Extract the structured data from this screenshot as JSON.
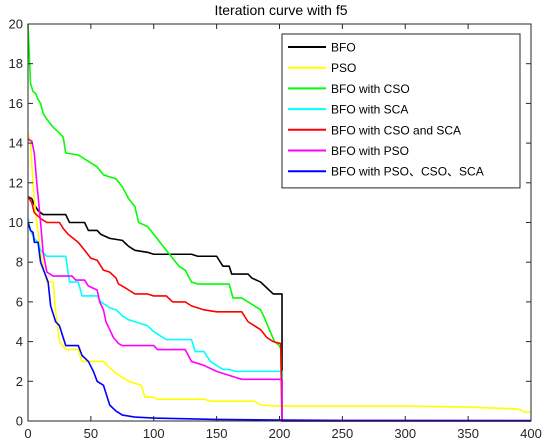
{
  "chart_data": {
    "type": "line",
    "title": "Iteration curve with f5",
    "xlabel": "",
    "ylabel": "",
    "xlim": [
      0,
      400
    ],
    "ylim": [
      0,
      20
    ],
    "xticks": [
      "0",
      "50",
      "100",
      "150",
      "200",
      "250",
      "300",
      "350",
      "400"
    ],
    "yticks": [
      "0",
      "2",
      "4",
      "6",
      "8",
      "10",
      "12",
      "14",
      "16",
      "18",
      "20"
    ],
    "grid": false,
    "legend_position": "top-right",
    "series": [
      {
        "name": "BFO",
        "color": "#000000",
        "points": [
          [
            0,
            11.3
          ],
          [
            3,
            11.2
          ],
          [
            5,
            10.9
          ],
          [
            8,
            10.6
          ],
          [
            12,
            10.4
          ],
          [
            30,
            10.4
          ],
          [
            33,
            10.0
          ],
          [
            45,
            10.0
          ],
          [
            48,
            9.6
          ],
          [
            55,
            9.6
          ],
          [
            58,
            9.4
          ],
          [
            65,
            9.2
          ],
          [
            75,
            9.1
          ],
          [
            80,
            8.8
          ],
          [
            85,
            8.6
          ],
          [
            95,
            8.5
          ],
          [
            100,
            8.4
          ],
          [
            130,
            8.4
          ],
          [
            135,
            8.3
          ],
          [
            150,
            8.3
          ],
          [
            155,
            7.8
          ],
          [
            160,
            7.8
          ],
          [
            162,
            7.4
          ],
          [
            175,
            7.4
          ],
          [
            178,
            7.2
          ],
          [
            185,
            7.0
          ],
          [
            190,
            6.7
          ],
          [
            195,
            6.4
          ],
          [
            202,
            6.4
          ],
          [
            202,
            0.0
          ],
          [
            400,
            0.0
          ]
        ]
      },
      {
        "name": "PSO",
        "color": "#ffff00",
        "points": [
          [
            0,
            14.5
          ],
          [
            2,
            14.0
          ],
          [
            4,
            12.0
          ],
          [
            6,
            10.5
          ],
          [
            8,
            9.5
          ],
          [
            10,
            8.5
          ],
          [
            13,
            7.5
          ],
          [
            15,
            7.0
          ],
          [
            20,
            7.0
          ],
          [
            22,
            5.5
          ],
          [
            25,
            4.0
          ],
          [
            30,
            3.6
          ],
          [
            40,
            3.6
          ],
          [
            43,
            3.0
          ],
          [
            60,
            3.0
          ],
          [
            63,
            2.8
          ],
          [
            70,
            2.4
          ],
          [
            80,
            2.0
          ],
          [
            90,
            1.8
          ],
          [
            93,
            1.2
          ],
          [
            100,
            1.2
          ],
          [
            103,
            1.1
          ],
          [
            140,
            1.1
          ],
          [
            145,
            1.0
          ],
          [
            180,
            1.0
          ],
          [
            185,
            0.8
          ],
          [
            200,
            0.75
          ],
          [
            300,
            0.75
          ],
          [
            350,
            0.7
          ],
          [
            390,
            0.6
          ],
          [
            395,
            0.45
          ],
          [
            400,
            0.45
          ]
        ]
      },
      {
        "name": "BFO with CSO",
        "color": "#00ff00",
        "points": [
          [
            0,
            20.0
          ],
          [
            2,
            17.0
          ],
          [
            4,
            16.6
          ],
          [
            6,
            16.5
          ],
          [
            8,
            16.2
          ],
          [
            10,
            16.0
          ],
          [
            12,
            15.5
          ],
          [
            15,
            15.2
          ],
          [
            20,
            14.8
          ],
          [
            25,
            14.5
          ],
          [
            28,
            14.3
          ],
          [
            30,
            13.5
          ],
          [
            40,
            13.4
          ],
          [
            45,
            13.2
          ],
          [
            50,
            13.0
          ],
          [
            55,
            12.8
          ],
          [
            60,
            12.4
          ],
          [
            70,
            12.2
          ],
          [
            75,
            11.8
          ],
          [
            80,
            11.2
          ],
          [
            85,
            10.8
          ],
          [
            88,
            10.0
          ],
          [
            95,
            9.8
          ],
          [
            100,
            9.4
          ],
          [
            105,
            9.0
          ],
          [
            110,
            8.6
          ],
          [
            115,
            8.2
          ],
          [
            120,
            7.8
          ],
          [
            125,
            7.6
          ],
          [
            130,
            7.0
          ],
          [
            135,
            6.9
          ],
          [
            160,
            6.9
          ],
          [
            163,
            6.2
          ],
          [
            170,
            6.2
          ],
          [
            175,
            6.0
          ],
          [
            180,
            5.8
          ],
          [
            185,
            5.6
          ],
          [
            188,
            5.2
          ],
          [
            192,
            4.6
          ],
          [
            196,
            4.0
          ],
          [
            200,
            3.8
          ],
          [
            201,
            3.6
          ],
          [
            202,
            0.0
          ],
          [
            400,
            0.0
          ]
        ]
      },
      {
        "name": "BFO with SCA",
        "color": "#00ffff",
        "points": [
          [
            0,
            10.2
          ],
          [
            2,
            9.6
          ],
          [
            5,
            9.2
          ],
          [
            8,
            9.0
          ],
          [
            10,
            8.6
          ],
          [
            15,
            8.3
          ],
          [
            30,
            8.3
          ],
          [
            33,
            7.0
          ],
          [
            40,
            7.0
          ],
          [
            43,
            6.3
          ],
          [
            55,
            6.3
          ],
          [
            58,
            6.0
          ],
          [
            65,
            5.7
          ],
          [
            70,
            5.6
          ],
          [
            75,
            5.3
          ],
          [
            80,
            5.1
          ],
          [
            85,
            5.0
          ],
          [
            95,
            4.8
          ],
          [
            100,
            4.5
          ],
          [
            105,
            4.3
          ],
          [
            110,
            4.1
          ],
          [
            130,
            4.1
          ],
          [
            133,
            3.5
          ],
          [
            140,
            3.5
          ],
          [
            145,
            3.0
          ],
          [
            150,
            2.8
          ],
          [
            155,
            2.6
          ],
          [
            160,
            2.6
          ],
          [
            165,
            2.5
          ],
          [
            200,
            2.5
          ],
          [
            202,
            2.5
          ],
          [
            202,
            0.0
          ],
          [
            400,
            0.0
          ]
        ]
      },
      {
        "name": "BFO with CSO and SCA",
        "color": "#ff0000",
        "points": [
          [
            0,
            11.3
          ],
          [
            3,
            11.0
          ],
          [
            5,
            10.5
          ],
          [
            10,
            10.2
          ],
          [
            15,
            10.0
          ],
          [
            25,
            10.0
          ],
          [
            28,
            9.7
          ],
          [
            32,
            9.4
          ],
          [
            40,
            9.0
          ],
          [
            45,
            8.6
          ],
          [
            50,
            8.2
          ],
          [
            55,
            8.1
          ],
          [
            60,
            7.6
          ],
          [
            65,
            7.5
          ],
          [
            70,
            7.2
          ],
          [
            72,
            6.9
          ],
          [
            75,
            6.8
          ],
          [
            80,
            6.6
          ],
          [
            85,
            6.4
          ],
          [
            95,
            6.4
          ],
          [
            100,
            6.3
          ],
          [
            110,
            6.3
          ],
          [
            115,
            6.0
          ],
          [
            125,
            6.0
          ],
          [
            130,
            5.8
          ],
          [
            140,
            5.6
          ],
          [
            150,
            5.5
          ],
          [
            170,
            5.5
          ],
          [
            175,
            5.0
          ],
          [
            180,
            4.8
          ],
          [
            185,
            4.6
          ],
          [
            190,
            4.2
          ],
          [
            195,
            4.0
          ],
          [
            201,
            3.9
          ],
          [
            202,
            0.0
          ],
          [
            400,
            0.0
          ]
        ]
      },
      {
        "name": "BFO with PSO",
        "color": "#ff00ff",
        "points": [
          [
            0,
            14.2
          ],
          [
            3,
            14.1
          ],
          [
            5,
            13.5
          ],
          [
            7,
            12.0
          ],
          [
            10,
            10.0
          ],
          [
            12,
            8.5
          ],
          [
            15,
            7.5
          ],
          [
            20,
            7.3
          ],
          [
            35,
            7.3
          ],
          [
            38,
            7.1
          ],
          [
            45,
            7.1
          ],
          [
            48,
            6.8
          ],
          [
            55,
            6.6
          ],
          [
            57,
            6.0
          ],
          [
            60,
            5.6
          ],
          [
            62,
            5.0
          ],
          [
            65,
            4.6
          ],
          [
            68,
            4.2
          ],
          [
            72,
            3.9
          ],
          [
            75,
            3.8
          ],
          [
            100,
            3.8
          ],
          [
            103,
            3.6
          ],
          [
            125,
            3.6
          ],
          [
            130,
            3.0
          ],
          [
            140,
            2.8
          ],
          [
            150,
            2.5
          ],
          [
            165,
            2.2
          ],
          [
            170,
            2.1
          ],
          [
            202,
            2.1
          ],
          [
            202,
            0.0
          ],
          [
            400,
            0.0
          ]
        ]
      },
      {
        "name": "BFO with PSO、CSO、SCA",
        "color": "#0000ff",
        "points": [
          [
            0,
            10.0
          ],
          [
            2,
            9.6
          ],
          [
            4,
            9.5
          ],
          [
            5,
            9.0
          ],
          [
            8,
            9.0
          ],
          [
            10,
            8.0
          ],
          [
            13,
            7.5
          ],
          [
            16,
            7.0
          ],
          [
            18,
            5.8
          ],
          [
            20,
            5.4
          ],
          [
            22,
            5.0
          ],
          [
            25,
            4.8
          ],
          [
            28,
            4.2
          ],
          [
            30,
            3.8
          ],
          [
            40,
            3.8
          ],
          [
            43,
            3.3
          ],
          [
            48,
            3.0
          ],
          [
            52,
            2.5
          ],
          [
            55,
            2.0
          ],
          [
            60,
            1.8
          ],
          [
            63,
            1.2
          ],
          [
            65,
            0.8
          ],
          [
            70,
            0.5
          ],
          [
            75,
            0.3
          ],
          [
            85,
            0.2
          ],
          [
            100,
            0.15
          ],
          [
            150,
            0.08
          ],
          [
            202,
            0.05
          ],
          [
            250,
            0.03
          ],
          [
            400,
            0.02
          ]
        ]
      }
    ]
  }
}
